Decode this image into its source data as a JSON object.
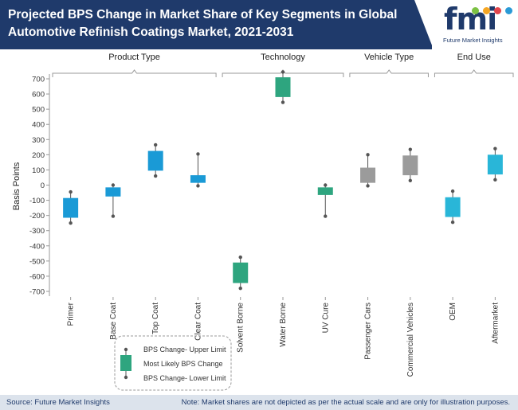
{
  "header": {
    "title": "Projected BPS Change in Market Share of Key Segments in Global Automotive Refinish Coatings Market, 2021-2031",
    "logo_text": "fmi",
    "logo_subtitle": "Future Market Insights"
  },
  "footer": {
    "source": "Source: Future Market Insights",
    "note": "Note: Market shares are not depicted as per the actual scale and are only for illustration purposes."
  },
  "legend": {
    "upper": "BPS Change- Upper Limit",
    "likely": "Most Likely BPS Change",
    "lower": "BPS Change- Lower Limit"
  },
  "chart_data": {
    "type": "box",
    "title": "Projected BPS Change in Market Share of Key Segments in Global Automotive Refinish Coatings Market, 2021-2031",
    "ylabel": "Basis Points",
    "ylim": [
      -700,
      700
    ],
    "yticks": [
      700,
      600,
      500,
      400,
      300,
      200,
      100,
      0,
      -100,
      -200,
      -300,
      -400,
      -500,
      -600,
      -700
    ],
    "groups": [
      {
        "name": "Product Type",
        "start": 0,
        "end": 3
      },
      {
        "name": "Technology",
        "start": 4,
        "end": 6
      },
      {
        "name": "Vehicle Type",
        "start": 7,
        "end": 8
      },
      {
        "name": "End Use",
        "start": 9,
        "end": 10
      }
    ],
    "categories": [
      "Primer",
      "Base Coat",
      "Top Coat",
      "Clear Coat",
      "Solvent Borne",
      "Water Borne",
      "UV Cure",
      "Passenger Cars",
      "Commercial Vehicles",
      "OEM",
      "Aftermarket"
    ],
    "boxes": [
      {
        "category": "Primer",
        "low": -250,
        "box_low": -215,
        "box_high": -85,
        "high": -45,
        "color": "#1a9ad6"
      },
      {
        "category": "Base Coat",
        "low": -205,
        "box_low": -75,
        "box_high": -15,
        "high": 0,
        "color": "#1a9ad6"
      },
      {
        "category": "Top Coat",
        "low": 60,
        "box_low": 95,
        "box_high": 225,
        "high": 265,
        "color": "#1a9ad6"
      },
      {
        "category": "Clear Coat",
        "low": -5,
        "box_low": 15,
        "box_high": 65,
        "high": 205,
        "color": "#1a9ad6"
      },
      {
        "category": "Solvent Borne",
        "low": -680,
        "box_low": -645,
        "box_high": -510,
        "high": -475,
        "color": "#2ea57f"
      },
      {
        "category": "Water Borne",
        "low": 545,
        "box_low": 580,
        "box_high": 710,
        "high": 745,
        "color": "#2ea57f"
      },
      {
        "category": "UV Cure",
        "low": -205,
        "box_low": -65,
        "box_high": -15,
        "high": 0,
        "color": "#2ea57f"
      },
      {
        "category": "Passenger Cars",
        "low": -5,
        "box_low": 15,
        "box_high": 115,
        "high": 200,
        "color": "#9b9b9b"
      },
      {
        "category": "Commercial Vehicles",
        "low": 30,
        "box_low": 65,
        "box_high": 195,
        "high": 235,
        "color": "#9b9b9b"
      },
      {
        "category": "OEM",
        "low": -245,
        "box_low": -210,
        "box_high": -80,
        "high": -40,
        "color": "#29b6d8"
      },
      {
        "category": "Aftermarket",
        "low": 35,
        "box_low": 70,
        "box_high": 200,
        "high": 240,
        "color": "#29b6d8"
      }
    ]
  }
}
